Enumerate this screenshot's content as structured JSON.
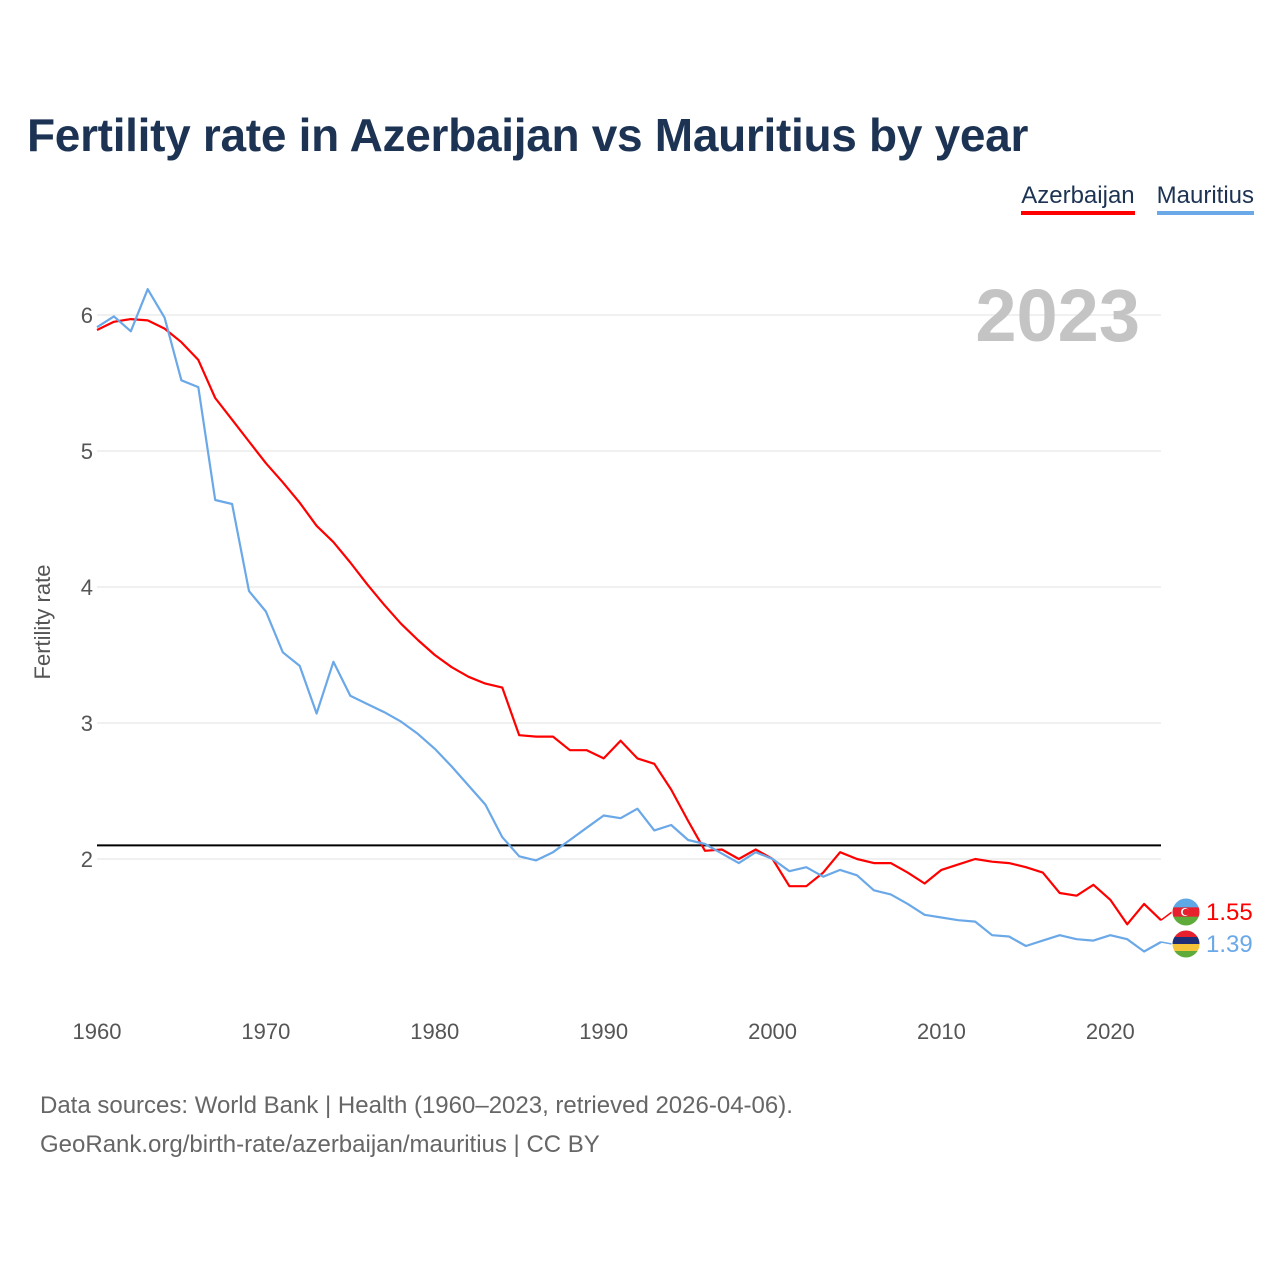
{
  "title": "Fertility rate in Azerbaijan vs Mauritius by year",
  "legend": [
    {
      "name": "Azerbaijan",
      "color": "#ff0000"
    },
    {
      "name": "Mauritius",
      "color": "#6aa8e8"
    }
  ],
  "year_display": "2023",
  "footer": {
    "source": "Data sources: World Bank | Health (1960–2023, retrieved 2026-04-06).",
    "credit": "GeoRank.org/birth-rate/azerbaijan/mauritius | CC BY"
  },
  "chart_data": {
    "type": "line",
    "title": "Fertility rate in Azerbaijan vs Mauritius by year",
    "xlabel": "",
    "ylabel": "Fertility rate",
    "xlim": [
      1960,
      2023
    ],
    "ylim": [
      1,
      6.5
    ],
    "x_ticks": [
      1960,
      1970,
      1980,
      1990,
      2000,
      2010,
      2020
    ],
    "y_ticks": [
      2,
      3,
      4,
      5,
      6
    ],
    "reference_line": {
      "y": 2.1,
      "color": "#000000"
    },
    "legend_position": "top-right",
    "x": [
      1960,
      1961,
      1962,
      1963,
      1964,
      1965,
      1966,
      1967,
      1968,
      1969,
      1970,
      1971,
      1972,
      1973,
      1974,
      1975,
      1976,
      1977,
      1978,
      1979,
      1980,
      1981,
      1982,
      1983,
      1984,
      1985,
      1986,
      1987,
      1988,
      1989,
      1990,
      1991,
      1992,
      1993,
      1994,
      1995,
      1996,
      1997,
      1998,
      1999,
      2000,
      2001,
      2002,
      2003,
      2004,
      2005,
      2006,
      2007,
      2008,
      2009,
      2010,
      2011,
      2012,
      2013,
      2014,
      2015,
      2016,
      2017,
      2018,
      2019,
      2020,
      2021,
      2022,
      2023
    ],
    "series": [
      {
        "name": "Azerbaijan",
        "color": "#ff0000",
        "end_label": "1.55",
        "values": [
          5.89,
          5.95,
          5.97,
          5.96,
          5.9,
          5.8,
          5.67,
          5.39,
          5.23,
          5.07,
          4.91,
          4.77,
          4.62,
          4.45,
          4.33,
          4.18,
          4.02,
          3.87,
          3.73,
          3.61,
          3.5,
          3.41,
          3.34,
          3.29,
          3.26,
          2.91,
          2.9,
          2.9,
          2.8,
          2.8,
          2.74,
          2.87,
          2.74,
          2.7,
          2.51,
          2.28,
          2.06,
          2.07,
          2.0,
          2.07,
          2.0,
          1.8,
          1.8,
          1.9,
          2.05,
          2.0,
          1.97,
          1.97,
          1.9,
          1.82,
          1.92,
          1.96,
          2.0,
          1.98,
          1.97,
          1.94,
          1.9,
          1.75,
          1.73,
          1.81,
          1.7,
          1.52,
          1.67,
          1.55
        ]
      },
      {
        "name": "Mauritius",
        "color": "#6aa8e8",
        "end_label": "1.39",
        "values": [
          5.91,
          5.99,
          5.88,
          6.19,
          5.98,
          5.52,
          5.47,
          4.64,
          4.61,
          3.97,
          3.82,
          3.52,
          3.42,
          3.07,
          3.45,
          3.2,
          3.14,
          3.08,
          3.01,
          2.92,
          2.81,
          2.68,
          2.54,
          2.4,
          2.16,
          2.02,
          1.99,
          2.05,
          2.14,
          2.23,
          2.32,
          2.3,
          2.37,
          2.21,
          2.25,
          2.14,
          2.11,
          2.04,
          1.97,
          2.05,
          2.0,
          1.91,
          1.94,
          1.87,
          1.92,
          1.88,
          1.77,
          1.74,
          1.67,
          1.59,
          1.57,
          1.55,
          1.54,
          1.44,
          1.43,
          1.36,
          1.4,
          1.44,
          1.41,
          1.4,
          1.44,
          1.41,
          1.32,
          1.39
        ]
      }
    ]
  }
}
